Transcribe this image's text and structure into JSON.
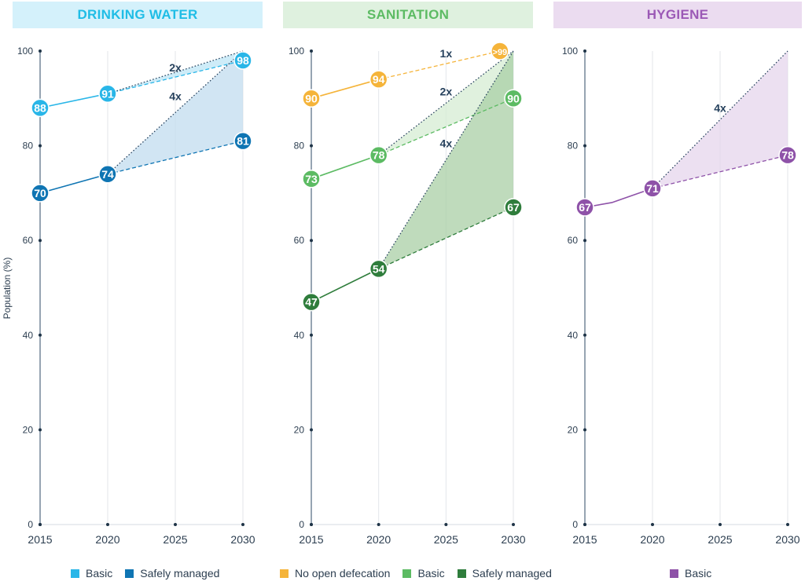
{
  "y_axis_label": "Population (%)",
  "chart_data": [
    {
      "type": "line",
      "title": "DRINKING WATER",
      "header_bg": "#d4f1fb",
      "header_color": "#1fbde6",
      "x_ticks": [
        2015,
        2020,
        2025,
        2030
      ],
      "y_ticks": [
        0,
        20,
        40,
        60,
        80,
        100
      ],
      "ylim": [
        0,
        100
      ],
      "series": [
        {
          "name": "Basic",
          "color": "#29b6e8",
          "fill": "#bde6f5",
          "points": [
            [
              2015,
              88
            ],
            [
              2020,
              91
            ]
          ],
          "labels": [
            "88",
            "91"
          ],
          "target": {
            "x": 2030,
            "y": 98,
            "label": "98"
          },
          "accel": {
            "x": 2030,
            "y": 100,
            "label": "2x",
            "label_x": 2025,
            "label_y": 96.5
          }
        },
        {
          "name": "Safely managed",
          "color": "#0f75b3",
          "fill": "#c2dcef",
          "points": [
            [
              2015,
              70
            ],
            [
              2020,
              74
            ]
          ],
          "labels": [
            "70",
            "74"
          ],
          "target": {
            "x": 2030,
            "y": 81,
            "label": "81"
          },
          "accel": {
            "x": 2030,
            "y": 100,
            "label": "4x",
            "label_x": 2025,
            "label_y": 90.5
          }
        }
      ],
      "legend": [
        {
          "label": "Basic",
          "color": "#29b6e8"
        },
        {
          "label": "Safely managed",
          "color": "#0f75b3"
        }
      ]
    },
    {
      "type": "line",
      "title": "SANITATION",
      "header_bg": "#dff1df",
      "header_color": "#5cbb63",
      "x_ticks": [
        2015,
        2020,
        2025,
        2030
      ],
      "y_ticks": [
        0,
        20,
        40,
        60,
        80,
        100
      ],
      "ylim": [
        0,
        100
      ],
      "series": [
        {
          "name": "No open defecation",
          "color": "#f5b43a",
          "fill": null,
          "points": [
            [
              2015,
              90
            ],
            [
              2020,
              94
            ]
          ],
          "labels": [
            "90",
            "94"
          ],
          "target": {
            "x": 2029,
            "y": 100,
            "label": ">99"
          },
          "accel": {
            "x": 2029,
            "y": 100,
            "label": "1x",
            "label_x": 2025,
            "label_y": 99.5
          }
        },
        {
          "name": "Basic",
          "color": "#5cbb63",
          "fill": "#d6ecd3",
          "points": [
            [
              2015,
              73
            ],
            [
              2020,
              78
            ]
          ],
          "labels": [
            "73",
            "78"
          ],
          "target": {
            "x": 2030,
            "y": 90,
            "label": "90"
          },
          "accel": {
            "x": 2030,
            "y": 100,
            "label": "2x",
            "label_x": 2025,
            "label_y": 91.5
          }
        },
        {
          "name": "Safely managed",
          "color": "#2f7d3c",
          "fill": "#a9cfa6",
          "points": [
            [
              2015,
              47
            ],
            [
              2020,
              54
            ]
          ],
          "labels": [
            "47",
            "54"
          ],
          "target": {
            "x": 2030,
            "y": 67,
            "label": "67"
          },
          "accel": {
            "x": 2030,
            "y": 100,
            "label": "4x",
            "label_x": 2025,
            "label_y": 80.5
          }
        }
      ],
      "legend": [
        {
          "label": "No open defecation",
          "color": "#f5b43a"
        },
        {
          "label": "Basic",
          "color": "#5cbb63"
        },
        {
          "label": "Safely managed",
          "color": "#2f7d3c"
        }
      ]
    },
    {
      "type": "line",
      "title": "HYGIENE",
      "header_bg": "#ebdcf0",
      "header_color": "#9b59b6",
      "x_ticks": [
        2015,
        2020,
        2025,
        2030
      ],
      "y_ticks": [
        0,
        20,
        40,
        60,
        80,
        100
      ],
      "ylim": [
        0,
        100
      ],
      "series": [
        {
          "name": "Basic",
          "color": "#8e52a8",
          "fill": "#e5d5ec",
          "points": [
            [
              2015,
              67
            ],
            [
              2017,
              68
            ],
            [
              2020,
              71
            ]
          ],
          "labels": [
            "67",
            "",
            "71"
          ],
          "target": {
            "x": 2030,
            "y": 78,
            "label": "78"
          },
          "accel": {
            "x": 2030,
            "y": 100,
            "label": "4x",
            "label_x": 2025,
            "label_y": 88
          }
        }
      ],
      "legend": [
        {
          "label": "Basic",
          "color": "#8e52a8"
        }
      ]
    }
  ]
}
